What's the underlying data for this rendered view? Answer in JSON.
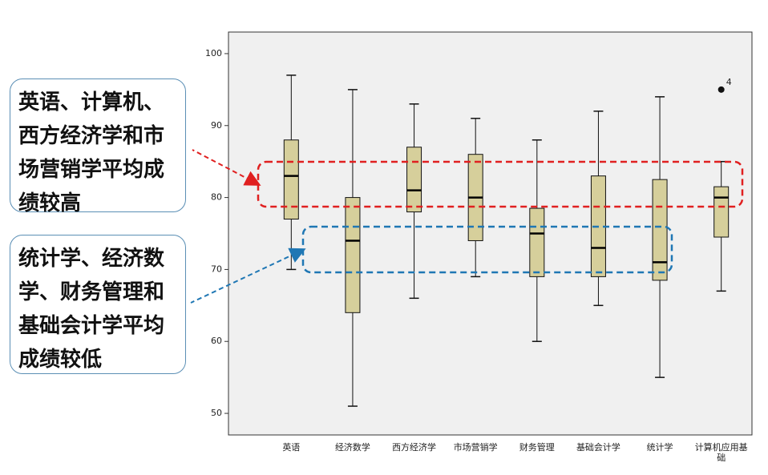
{
  "chart_data": {
    "type": "box",
    "categories": [
      "英语",
      "经济数学",
      "西方经济学",
      "市场营销学",
      "财务管理",
      "基础会计学",
      "统计学",
      "计算机应用基础"
    ],
    "boxes": [
      {
        "min": 70,
        "q1": 77,
        "median": 83,
        "q3": 88,
        "max": 97
      },
      {
        "min": 51,
        "q1": 64,
        "median": 74,
        "q3": 80,
        "max": 95
      },
      {
        "min": 66,
        "q1": 78,
        "median": 81,
        "q3": 87,
        "max": 93
      },
      {
        "min": 69,
        "q1": 74,
        "median": 80,
        "q3": 86,
        "max": 91
      },
      {
        "min": 60,
        "q1": 69,
        "median": 75,
        "q3": 78.5,
        "max": 88
      },
      {
        "min": 65,
        "q1": 69,
        "median": 73,
        "q3": 83,
        "max": 92
      },
      {
        "min": 55,
        "q1": 68.5,
        "median": 71,
        "q3": 82.5,
        "max": 94
      },
      {
        "min": 67,
        "q1": 74.5,
        "median": 80,
        "q3": 81.5,
        "max": 85,
        "outliers": [
          {
            "value": 95,
            "label": "4"
          }
        ]
      }
    ],
    "color": "#d6cf9b",
    "ylim": [
      47,
      103
    ],
    "yticks": [
      50,
      60,
      70,
      80,
      90,
      100
    ],
    "annotations": [
      "英语、计算机、西方经济学和市场营销学平均成绩较高",
      "统计学、经济数学、财务管理和基础会计学平均成绩较低"
    ]
  }
}
